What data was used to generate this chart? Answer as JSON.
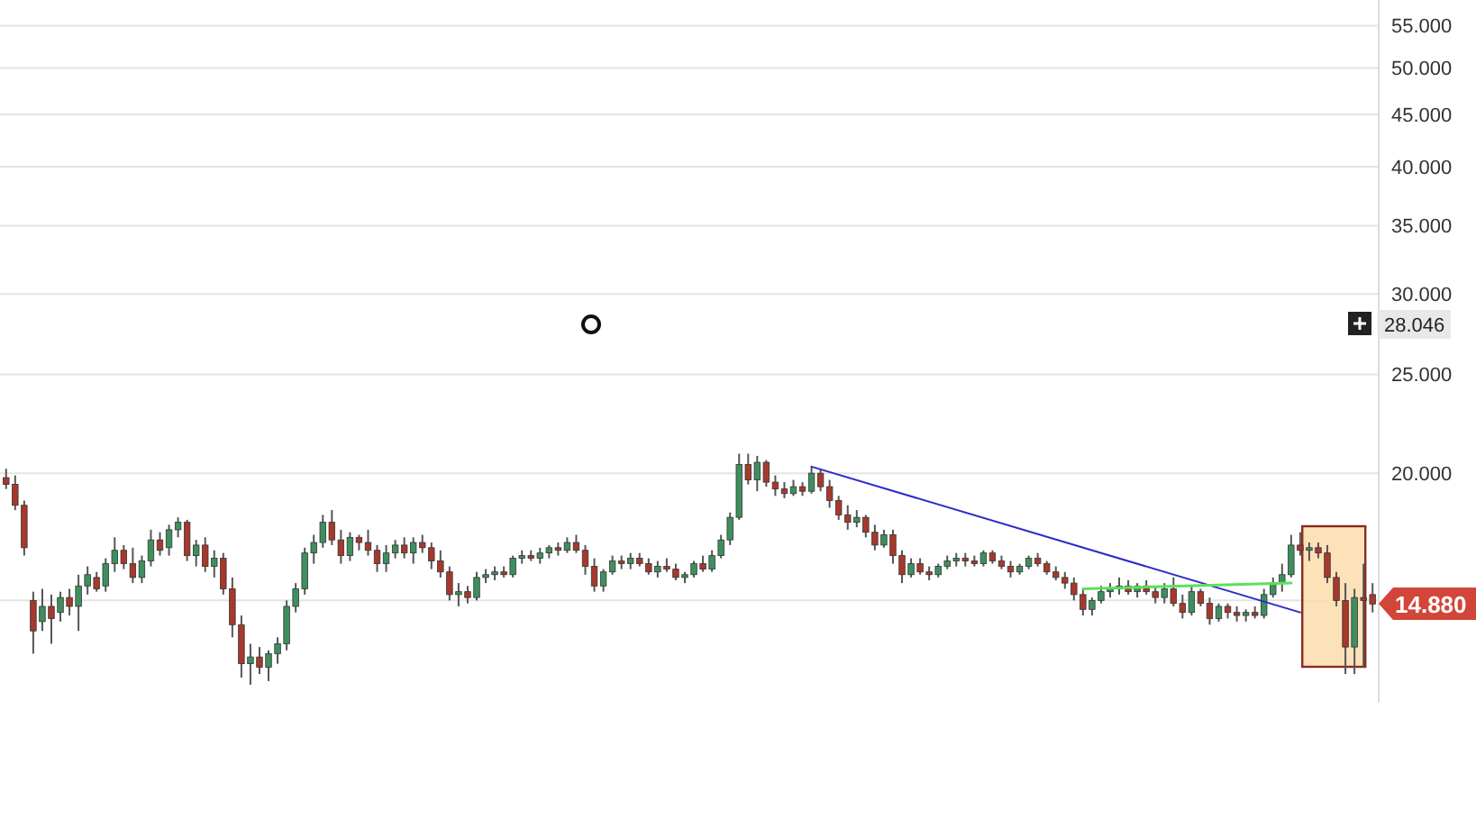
{
  "chart_data": {
    "type": "candlestick",
    "categories": [
      null,
      null,
      null,
      null,
      null,
      null,
      null,
      null,
      null,
      null,
      null,
      null,
      null,
      null,
      null,
      null,
      null,
      null,
      null,
      null,
      null,
      null,
      null,
      null,
      null,
      null,
      null,
      null,
      null,
      null,
      null,
      null,
      null,
      null,
      null,
      null,
      null,
      null,
      null,
      null,
      null,
      null,
      null,
      null,
      null,
      null,
      null,
      null,
      null,
      null,
      null,
      null,
      null,
      null,
      null,
      null,
      null,
      null,
      null,
      null,
      null,
      null,
      null,
      null,
      null,
      null,
      null,
      null,
      null,
      null,
      null,
      null,
      null,
      null,
      null,
      null,
      null,
      null,
      null,
      null,
      null,
      null,
      null,
      null,
      null,
      null,
      null,
      null,
      null,
      null,
      null,
      null,
      null,
      null,
      null,
      null,
      null,
      null,
      null,
      null,
      null,
      null,
      null,
      null,
      null,
      null,
      null,
      null,
      null,
      null,
      null,
      null,
      null,
      null,
      null,
      null,
      null,
      null,
      null,
      null,
      null,
      null,
      null,
      null,
      null,
      null,
      null,
      null,
      null,
      null,
      null,
      null,
      null,
      null,
      null,
      null,
      null,
      null,
      null,
      null,
      null,
      null,
      null,
      null,
      null,
      null,
      null,
      null,
      null,
      null,
      null,
      null
    ],
    "ohlc": [
      [
        19.8,
        20.2,
        19.3,
        19.5
      ],
      [
        19.5,
        19.9,
        18.4,
        18.6
      ],
      [
        18.6,
        18.8,
        16.6,
        16.9
      ],
      [
        15.0,
        15.3,
        13.3,
        14.0
      ],
      [
        14.3,
        15.4,
        14.0,
        14.8
      ],
      [
        14.8,
        15.2,
        13.6,
        14.4
      ],
      [
        14.6,
        15.3,
        14.3,
        15.1
      ],
      [
        15.1,
        15.4,
        14.5,
        14.8
      ],
      [
        14.8,
        15.9,
        14.0,
        15.5
      ],
      [
        15.5,
        16.2,
        15.2,
        15.9
      ],
      [
        15.8,
        16.0,
        15.3,
        15.4
      ],
      [
        15.5,
        16.5,
        15.3,
        16.3
      ],
      [
        16.3,
        17.3,
        16.0,
        16.8
      ],
      [
        16.8,
        17.0,
        16.1,
        16.3
      ],
      [
        16.3,
        16.9,
        15.6,
        15.8
      ],
      [
        15.8,
        16.6,
        15.6,
        16.4
      ],
      [
        16.4,
        17.6,
        16.2,
        17.2
      ],
      [
        17.2,
        17.5,
        16.6,
        16.8
      ],
      [
        16.9,
        17.8,
        16.6,
        17.6
      ],
      [
        17.6,
        18.1,
        17.3,
        17.9
      ],
      [
        17.9,
        18.0,
        16.4,
        16.6
      ],
      [
        16.6,
        17.2,
        16.2,
        17.0
      ],
      [
        17.0,
        17.3,
        16.0,
        16.2
      ],
      [
        16.2,
        16.8,
        15.8,
        16.5
      ],
      [
        16.5,
        16.7,
        15.2,
        15.4
      ],
      [
        15.4,
        15.8,
        13.8,
        14.2
      ],
      [
        14.2,
        14.5,
        12.6,
        13.0
      ],
      [
        13.0,
        13.6,
        12.4,
        13.2
      ],
      [
        13.2,
        13.5,
        12.7,
        12.9
      ],
      [
        12.9,
        13.4,
        12.5,
        13.3
      ],
      [
        13.3,
        13.8,
        13.0,
        13.6
      ],
      [
        13.6,
        15.0,
        13.4,
        14.8
      ],
      [
        14.8,
        15.6,
        14.6,
        15.4
      ],
      [
        15.4,
        16.9,
        15.2,
        16.7
      ],
      [
        16.7,
        17.4,
        16.3,
        17.1
      ],
      [
        17.1,
        18.2,
        16.9,
        17.9
      ],
      [
        17.9,
        18.4,
        17.0,
        17.2
      ],
      [
        17.2,
        17.6,
        16.3,
        16.6
      ],
      [
        16.6,
        17.5,
        16.4,
        17.3
      ],
      [
        17.3,
        17.4,
        16.8,
        17.1
      ],
      [
        17.1,
        17.6,
        16.6,
        16.8
      ],
      [
        16.8,
        17.0,
        16.0,
        16.3
      ],
      [
        16.3,
        17.0,
        16.0,
        16.7
      ],
      [
        16.7,
        17.2,
        16.5,
        17.0
      ],
      [
        17.0,
        17.3,
        16.5,
        16.7
      ],
      [
        16.7,
        17.3,
        16.3,
        17.1
      ],
      [
        17.1,
        17.4,
        16.7,
        16.9
      ],
      [
        16.9,
        17.1,
        16.1,
        16.4
      ],
      [
        16.4,
        16.8,
        15.8,
        16.0
      ],
      [
        16.0,
        16.2,
        15.0,
        15.2
      ],
      [
        15.2,
        15.6,
        14.8,
        15.3
      ],
      [
        15.3,
        15.5,
        14.9,
        15.1
      ],
      [
        15.1,
        16.0,
        15.0,
        15.8
      ],
      [
        15.8,
        16.1,
        15.6,
        15.9
      ],
      [
        15.9,
        16.2,
        15.7,
        16.0
      ],
      [
        16.0,
        16.2,
        15.8,
        15.9
      ],
      [
        15.9,
        16.6,
        15.8,
        16.5
      ],
      [
        16.5,
        16.8,
        16.3,
        16.6
      ],
      [
        16.6,
        16.8,
        16.4,
        16.5
      ],
      [
        16.5,
        16.9,
        16.3,
        16.7
      ],
      [
        16.7,
        17.0,
        16.5,
        16.9
      ],
      [
        16.9,
        17.1,
        16.6,
        16.8
      ],
      [
        16.8,
        17.3,
        16.7,
        17.1
      ],
      [
        17.1,
        17.4,
        16.7,
        16.8
      ],
      [
        16.8,
        17.0,
        15.9,
        16.2
      ],
      [
        16.2,
        16.5,
        15.3,
        15.5
      ],
      [
        15.5,
        16.1,
        15.3,
        16.0
      ],
      [
        16.0,
        16.6,
        15.9,
        16.4
      ],
      [
        16.4,
        16.6,
        16.1,
        16.3
      ],
      [
        16.3,
        16.7,
        16.1,
        16.5
      ],
      [
        16.5,
        16.7,
        16.2,
        16.3
      ],
      [
        16.3,
        16.5,
        15.9,
        16.0
      ],
      [
        16.0,
        16.4,
        15.8,
        16.2
      ],
      [
        16.2,
        16.5,
        16.0,
        16.1
      ],
      [
        16.1,
        16.3,
        15.7,
        15.8
      ],
      [
        15.8,
        16.0,
        15.6,
        15.9
      ],
      [
        15.9,
        16.4,
        15.8,
        16.3
      ],
      [
        16.3,
        16.6,
        16.0,
        16.1
      ],
      [
        16.1,
        16.8,
        16.0,
        16.6
      ],
      [
        16.6,
        17.4,
        16.5,
        17.2
      ],
      [
        17.2,
        18.3,
        17.0,
        18.1
      ],
      [
        18.1,
        20.9,
        18.0,
        20.4
      ],
      [
        20.4,
        20.9,
        19.5,
        19.7
      ],
      [
        19.7,
        20.8,
        19.2,
        20.5
      ],
      [
        20.5,
        20.6,
        19.4,
        19.6
      ],
      [
        19.6,
        19.9,
        19.0,
        19.3
      ],
      [
        19.3,
        19.6,
        18.9,
        19.1
      ],
      [
        19.1,
        19.7,
        19.0,
        19.4
      ],
      [
        19.4,
        19.6,
        19.0,
        19.2
      ],
      [
        19.2,
        20.3,
        19.1,
        20.0
      ],
      [
        20.0,
        20.2,
        19.2,
        19.4
      ],
      [
        19.4,
        19.7,
        18.5,
        18.8
      ],
      [
        18.8,
        19.0,
        18.0,
        18.2
      ],
      [
        18.2,
        18.6,
        17.6,
        17.9
      ],
      [
        17.9,
        18.4,
        17.7,
        18.1
      ],
      [
        18.1,
        18.2,
        17.3,
        17.5
      ],
      [
        17.5,
        17.8,
        16.8,
        17.0
      ],
      [
        17.0,
        17.6,
        16.9,
        17.4
      ],
      [
        17.4,
        17.6,
        16.3,
        16.6
      ],
      [
        16.6,
        16.8,
        15.6,
        15.9
      ],
      [
        15.9,
        16.5,
        15.8,
        16.3
      ],
      [
        16.3,
        16.5,
        15.9,
        16.0
      ],
      [
        16.0,
        16.2,
        15.7,
        15.9
      ],
      [
        15.9,
        16.3,
        15.8,
        16.2
      ],
      [
        16.2,
        16.6,
        16.1,
        16.4
      ],
      [
        16.4,
        16.7,
        16.2,
        16.5
      ],
      [
        16.5,
        16.7,
        16.2,
        16.4
      ],
      [
        16.4,
        16.6,
        16.2,
        16.3
      ],
      [
        16.3,
        16.8,
        16.2,
        16.7
      ],
      [
        16.7,
        16.8,
        16.3,
        16.4
      ],
      [
        16.4,
        16.6,
        16.1,
        16.2
      ],
      [
        16.2,
        16.4,
        15.8,
        16.0
      ],
      [
        16.0,
        16.3,
        15.9,
        16.2
      ],
      [
        16.2,
        16.6,
        16.1,
        16.5
      ],
      [
        16.5,
        16.7,
        16.2,
        16.3
      ],
      [
        16.3,
        16.4,
        15.9,
        16.0
      ],
      [
        16.0,
        16.2,
        15.7,
        15.8
      ],
      [
        15.8,
        16.0,
        15.4,
        15.6
      ],
      [
        15.6,
        15.8,
        15.0,
        15.2
      ],
      [
        15.2,
        15.4,
        14.5,
        14.7
      ],
      [
        14.7,
        15.1,
        14.5,
        15.0
      ],
      [
        15.0,
        15.5,
        14.9,
        15.3
      ],
      [
        15.3,
        15.6,
        15.1,
        15.4
      ],
      [
        15.4,
        15.8,
        15.2,
        15.5
      ],
      [
        15.5,
        15.7,
        15.2,
        15.3
      ],
      [
        15.3,
        15.6,
        15.1,
        15.5
      ],
      [
        15.5,
        15.7,
        15.2,
        15.3
      ],
      [
        15.3,
        15.5,
        14.9,
        15.1
      ],
      [
        15.1,
        15.6,
        14.9,
        15.4
      ],
      [
        15.4,
        15.8,
        14.8,
        14.9
      ],
      [
        14.9,
        15.2,
        14.4,
        14.6
      ],
      [
        14.6,
        15.5,
        14.5,
        15.3
      ],
      [
        15.3,
        15.4,
        14.8,
        14.9
      ],
      [
        14.9,
        15.1,
        14.2,
        14.4
      ],
      [
        14.4,
        14.9,
        14.3,
        14.8
      ],
      [
        14.8,
        14.9,
        14.4,
        14.6
      ],
      [
        14.6,
        14.8,
        14.3,
        14.5
      ],
      [
        14.5,
        14.7,
        14.3,
        14.6
      ],
      [
        14.6,
        14.8,
        14.4,
        14.5
      ],
      [
        14.5,
        15.4,
        14.4,
        15.2
      ],
      [
        15.2,
        15.8,
        15.1,
        15.6
      ],
      [
        15.6,
        16.3,
        15.3,
        15.9
      ],
      [
        15.9,
        17.4,
        15.8,
        17.0
      ],
      [
        17.0,
        17.5,
        16.6,
        16.8
      ],
      [
        16.8,
        17.1,
        16.4,
        16.9
      ],
      [
        16.9,
        17.1,
        16.5,
        16.7
      ],
      [
        16.7,
        17.0,
        15.6,
        15.8
      ],
      [
        15.8,
        16.0,
        14.8,
        15.0
      ],
      [
        15.0,
        15.6,
        12.7,
        13.5
      ],
      [
        13.5,
        15.4,
        12.7,
        15.1
      ],
      [
        15.1,
        16.3,
        12.9,
        15.0
      ],
      [
        15.2,
        15.6,
        14.6,
        14.88
      ]
    ],
    "series": [
      {
        "type": "line",
        "color": "#2b2bc8",
        "values": [
          null,
          null,
          null,
          null,
          null,
          null,
          null,
          null,
          null,
          null,
          null,
          null,
          null,
          null,
          null,
          null,
          null,
          null,
          null,
          null,
          null,
          null,
          null,
          null,
          null,
          null,
          null,
          null,
          null,
          null,
          null,
          null,
          null,
          null,
          null,
          null,
          null,
          null,
          null,
          null,
          null,
          null,
          null,
          null,
          null,
          null,
          null,
          null,
          null,
          null,
          null,
          null,
          null,
          null,
          null,
          null,
          null,
          null,
          null,
          null,
          null,
          null,
          null,
          null,
          null,
          null,
          null,
          null,
          null,
          null,
          null,
          null,
          null,
          null,
          null,
          null,
          null,
          null,
          null,
          null,
          null,
          null,
          null,
          null,
          null,
          null,
          null,
          null,
          null,
          20.3,
          null,
          null,
          null,
          null,
          null,
          null,
          null,
          null,
          null,
          null,
          null,
          null,
          null,
          null,
          null,
          null,
          null,
          null,
          null,
          null,
          null,
          null,
          null,
          null,
          null,
          null,
          null,
          null,
          null,
          null,
          null,
          null,
          null,
          null,
          null,
          null,
          null,
          null,
          null,
          null,
          null,
          null,
          null,
          null,
          null,
          null,
          null,
          null,
          null,
          null,
          null,
          null,
          null,
          14.6,
          null,
          null,
          null,
          null,
          null,
          null,
          null,
          null
        ]
      },
      {
        "type": "line",
        "color": "#5ce05c",
        "values": [
          null,
          null,
          null,
          null,
          null,
          null,
          null,
          null,
          null,
          null,
          null,
          null,
          null,
          null,
          null,
          null,
          null,
          null,
          null,
          null,
          null,
          null,
          null,
          null,
          null,
          null,
          null,
          null,
          null,
          null,
          null,
          null,
          null,
          null,
          null,
          null,
          null,
          null,
          null,
          null,
          null,
          null,
          null,
          null,
          null,
          null,
          null,
          null,
          null,
          null,
          null,
          null,
          null,
          null,
          null,
          null,
          null,
          null,
          null,
          null,
          null,
          null,
          null,
          null,
          null,
          null,
          null,
          null,
          null,
          null,
          null,
          null,
          null,
          null,
          null,
          null,
          null,
          null,
          null,
          null,
          null,
          null,
          null,
          null,
          null,
          null,
          null,
          null,
          null,
          null,
          null,
          null,
          null,
          null,
          null,
          null,
          null,
          null,
          null,
          null,
          null,
          null,
          null,
          null,
          null,
          null,
          null,
          null,
          null,
          null,
          null,
          null,
          null,
          null,
          null,
          null,
          null,
          null,
          null,
          15.4,
          null,
          null,
          null,
          null,
          null,
          null,
          null,
          null,
          null,
          null,
          null,
          null,
          null,
          null,
          null,
          null,
          null,
          null,
          null,
          null,
          null,
          null,
          15.6,
          null,
          null,
          null,
          null,
          null,
          null,
          null,
          null,
          null
        ]
      }
    ],
    "log": "y",
    "ylim": [
      11.9,
      58.3
    ],
    "yticks": [
      {
        "value": 15,
        "label": null
      },
      {
        "value": 20,
        "label": "20.000"
      },
      {
        "value": 25,
        "label": "25.000"
      },
      {
        "value": 30,
        "label": "30.000"
      },
      {
        "value": 35,
        "label": "35.000"
      },
      {
        "value": 40,
        "label": "40.000"
      },
      {
        "value": 45,
        "label": "45.000"
      },
      {
        "value": 50,
        "label": "50.000"
      },
      {
        "value": 55,
        "label": "55.000"
      }
    ],
    "grid": "y",
    "annotations": [
      "28.046",
      "14.880"
    ]
  }
}
